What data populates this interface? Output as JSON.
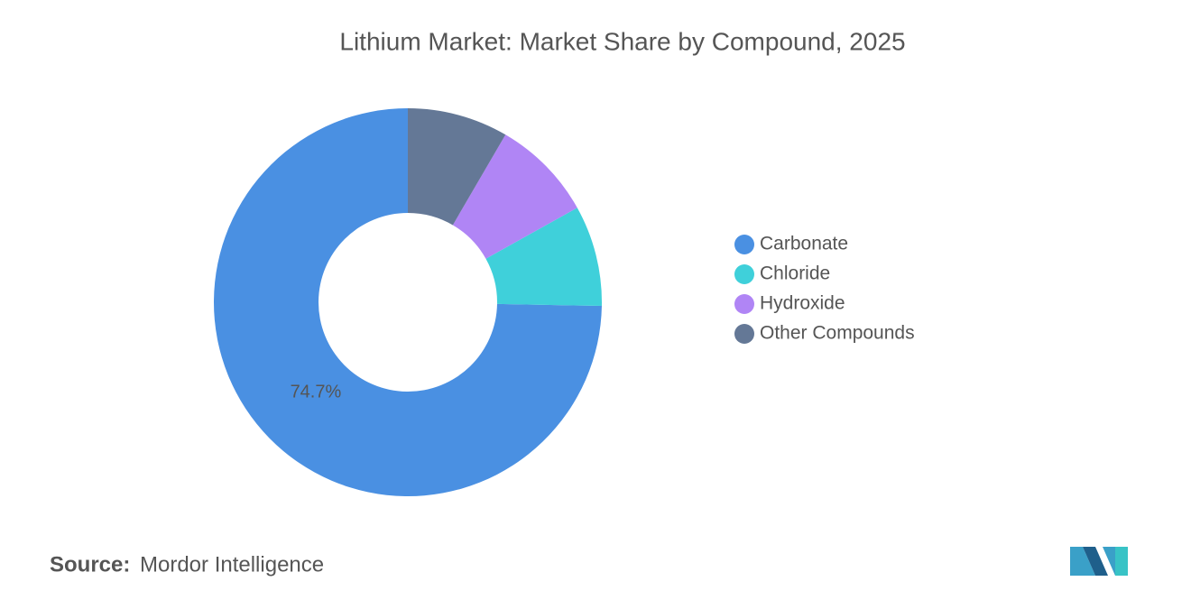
{
  "chart_data": {
    "type": "donut",
    "title": "Lithium Market: Market Share by Compound, 2025",
    "categories": [
      "Carbonate",
      "Chloride",
      "Hydroxide",
      "Other Compounds"
    ],
    "values": [
      74.7,
      8.4,
      8.5,
      8.4
    ],
    "value_labels": [
      "74.7%",
      null,
      null,
      null
    ],
    "colors": [
      "#4a90e2",
      "#3fd0da",
      "#b085f5",
      "#647896"
    ],
    "legend": "right"
  },
  "source": {
    "label": "Source:",
    "text": "Mordor Intelligence"
  }
}
